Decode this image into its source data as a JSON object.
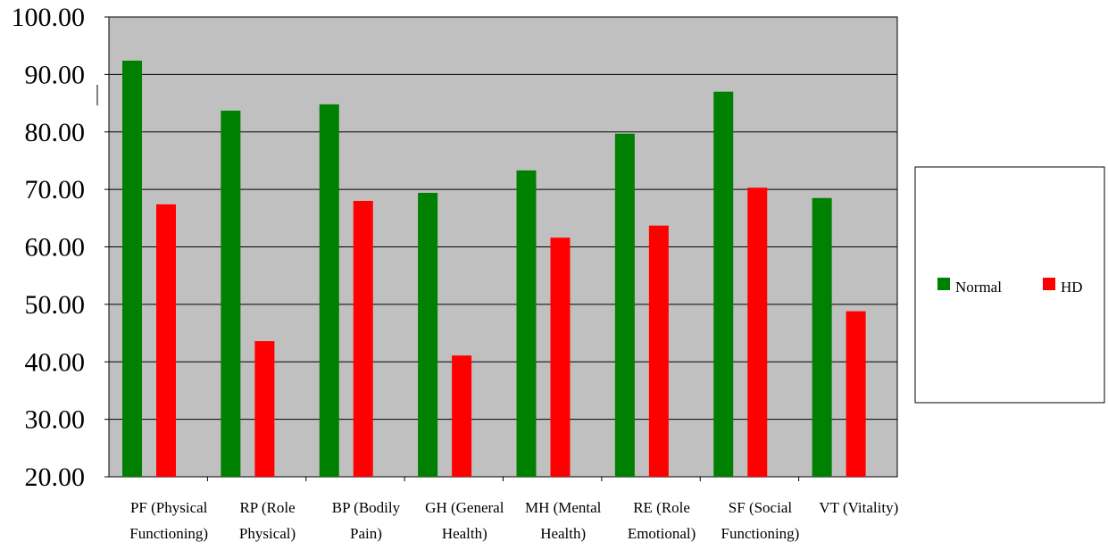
{
  "chart_data": {
    "type": "bar",
    "categories": [
      [
        "PF (Physical",
        "Functioning)"
      ],
      [
        "RP (Role",
        "Physical)"
      ],
      [
        "BP (Bodily",
        "Pain)"
      ],
      [
        "GH (General",
        "Health)"
      ],
      [
        "MH (Mental",
        "Health)"
      ],
      [
        "RE (Role",
        "Emotional)"
      ],
      [
        "SF (Social",
        "Functioning)"
      ],
      [
        "VT (Vitality)",
        ""
      ]
    ],
    "series": [
      {
        "name": "Normal",
        "color": "#008000",
        "values": [
          92.4,
          83.7,
          84.8,
          69.4,
          73.3,
          79.7,
          87.0,
          68.5
        ]
      },
      {
        "name": "HD",
        "color": "#ff0000",
        "values": [
          67.4,
          43.6,
          68.0,
          41.1,
          61.6,
          63.7,
          70.3,
          48.8
        ]
      }
    ],
    "ylim": [
      20,
      100
    ],
    "yticks": [
      "20.00",
      "30.00",
      "40.00",
      "50.00",
      "60.00",
      "70.00",
      "80.00",
      "90.00",
      "100.00"
    ],
    "grid": true,
    "plot_background": "#c0c0c0",
    "legend_placement": "right"
  }
}
